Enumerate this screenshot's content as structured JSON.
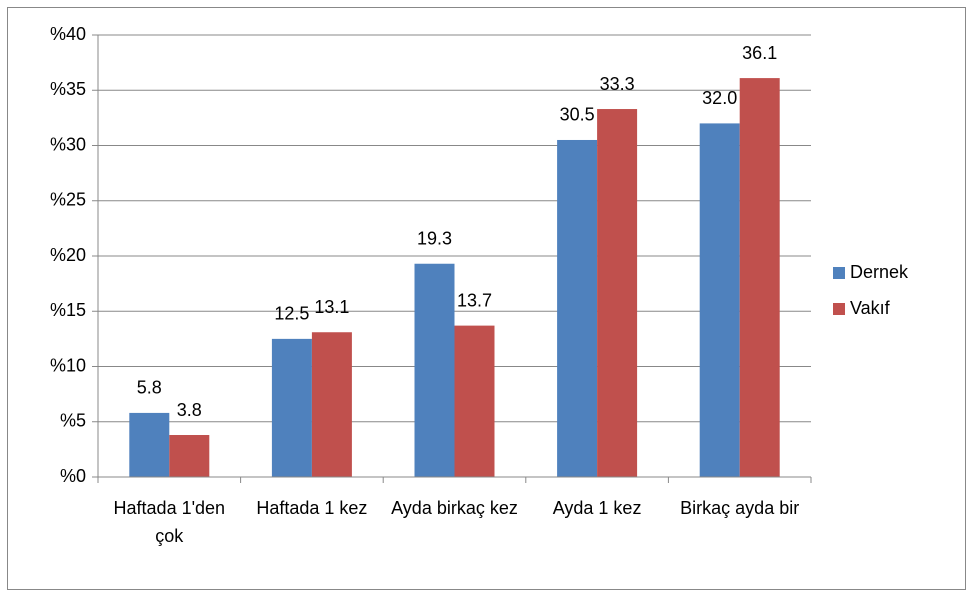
{
  "chart_data": {
    "type": "bar",
    "categories": [
      "Haftada 1'den çok",
      "Haftada 1 kez",
      "Ayda birkaç kez",
      "Ayda 1 kez",
      "Birkaç ayda bir"
    ],
    "series": [
      {
        "name": "Dernek",
        "color": "#4f81bd",
        "values": [
          5.8,
          12.5,
          19.3,
          30.5,
          32.0
        ],
        "value_labels": [
          "5.8",
          "12.5",
          "19.3",
          "30.5",
          "32.0"
        ]
      },
      {
        "name": "Vakıf",
        "color": "#c0504d",
        "values": [
          3.8,
          13.1,
          13.7,
          33.3,
          36.1
        ],
        "value_labels": [
          "3.8",
          "13.1",
          "13.7",
          "33.3",
          "36.1"
        ]
      }
    ],
    "ylim": [
      0,
      40
    ],
    "yticks": [
      {
        "value": 0,
        "label": "%0"
      },
      {
        "value": 5,
        "label": "%5"
      },
      {
        "value": 10,
        "label": "%10"
      },
      {
        "value": 15,
        "label": "%15"
      },
      {
        "value": 20,
        "label": "%20"
      },
      {
        "value": 25,
        "label": "%25"
      },
      {
        "value": 30,
        "label": "%30"
      },
      {
        "value": 35,
        "label": "%35"
      },
      {
        "value": 40,
        "label": "%40"
      }
    ],
    "grid": true,
    "legend": "right"
  }
}
